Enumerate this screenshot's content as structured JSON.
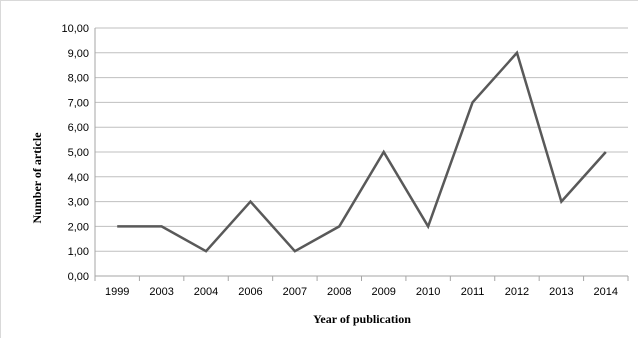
{
  "chart_data": {
    "type": "line",
    "title": "",
    "xlabel": "Year of publication",
    "ylabel": "Number of article",
    "categories": [
      "1999",
      "2003",
      "2004",
      "2006",
      "2007",
      "2008",
      "2009",
      "2010",
      "2011",
      "2012",
      "2013",
      "2014"
    ],
    "series": [
      {
        "values": [
          2,
          2,
          1,
          3,
          1,
          2,
          5,
          2,
          7,
          9,
          3,
          5
        ]
      }
    ],
    "ylim": [
      0,
      10
    ],
    "ytick_labels": [
      "0,00",
      "1,00",
      "2,00",
      "3,00",
      "4,00",
      "5,00",
      "6,00",
      "7,00",
      "8,00",
      "9,00",
      "10,00"
    ],
    "grid": true,
    "legend": "none",
    "line_color": "#595959",
    "grid_color": "#bfbfbf"
  }
}
